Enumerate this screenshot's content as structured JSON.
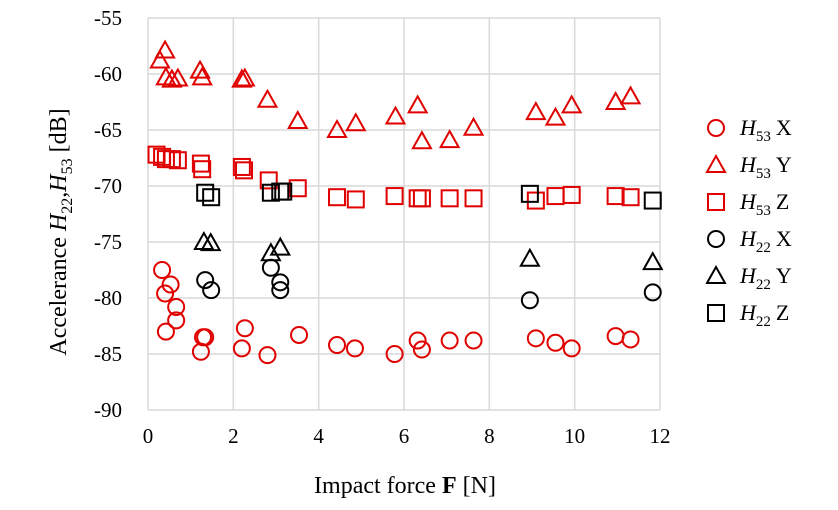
{
  "chart_data": {
    "type": "scatter",
    "xlabel": {
      "pre": "Impact force ",
      "bold": "F",
      "post": " [N]"
    },
    "ylabel": {
      "pre": "Accelerance  ",
      "h1": "H",
      "s1": "22",
      "sep": ",",
      "h2": "H",
      "s2": "53",
      "post": "  [dB]"
    },
    "xlim": [
      0,
      12
    ],
    "ylim": [
      -90,
      -55
    ],
    "xticks": [
      "0",
      "2",
      "4",
      "6",
      "8",
      "10",
      "12"
    ],
    "yticks": [
      "-55",
      "-60",
      "-65",
      "-70",
      "-75",
      "-80",
      "-85",
      "-90"
    ],
    "grid": true,
    "legend_position": "right",
    "series": [
      {
        "name": "H53 X",
        "h": "H",
        "sub": "53",
        "axis": "X",
        "marker": "circle",
        "color": "#e00000",
        "points": [
          [
            0.33,
            -77.5
          ],
          [
            0.4,
            -79.6
          ],
          [
            0.53,
            -78.8
          ],
          [
            0.42,
            -83
          ],
          [
            0.66,
            -80.8
          ],
          [
            0.66,
            -82
          ],
          [
            1.24,
            -84.8
          ],
          [
            1.29,
            -83.5
          ],
          [
            1.34,
            -83.5
          ],
          [
            2.2,
            -84.5
          ],
          [
            2.27,
            -82.7
          ],
          [
            2.8,
            -85.1
          ],
          [
            3.54,
            -83.3
          ],
          [
            4.43,
            -84.2
          ],
          [
            4.85,
            -84.5
          ],
          [
            5.78,
            -85
          ],
          [
            6.32,
            -83.8
          ],
          [
            6.42,
            -84.6
          ],
          [
            7.07,
            -83.8
          ],
          [
            7.63,
            -83.8
          ],
          [
            9.09,
            -83.6
          ],
          [
            9.55,
            -84
          ],
          [
            9.93,
            -84.5
          ],
          [
            10.96,
            -83.4
          ],
          [
            11.31,
            -83.7
          ]
        ]
      },
      {
        "name": "H53 Y",
        "h": "H",
        "sub": "53",
        "axis": "Y",
        "marker": "triangle",
        "color": "#e00000",
        "points": [
          [
            0.28,
            -58.8
          ],
          [
            0.4,
            -57.9
          ],
          [
            0.42,
            -60.3
          ],
          [
            0.56,
            -60.5
          ],
          [
            0.7,
            -60.4
          ],
          [
            1.22,
            -59.7
          ],
          [
            1.27,
            -60.3
          ],
          [
            2.2,
            -60.5
          ],
          [
            2.27,
            -60.4
          ],
          [
            2.8,
            -62.3
          ],
          [
            3.51,
            -64.2
          ],
          [
            4.43,
            -65
          ],
          [
            4.87,
            -64.4
          ],
          [
            5.8,
            -63.8
          ],
          [
            6.32,
            -62.8
          ],
          [
            6.42,
            -66
          ],
          [
            7.07,
            -65.9
          ],
          [
            7.63,
            -64.8
          ],
          [
            9.09,
            -63.4
          ],
          [
            9.55,
            -63.9
          ],
          [
            9.93,
            -62.8
          ],
          [
            10.96,
            -62.5
          ],
          [
            11.31,
            -62
          ]
        ]
      },
      {
        "name": "H53 Z",
        "h": "H",
        "sub": "53",
        "axis": "Z",
        "marker": "square",
        "color": "#e00000",
        "points": [
          [
            0.2,
            -67.2
          ],
          [
            0.33,
            -67.4
          ],
          [
            0.42,
            -67.6
          ],
          [
            0.56,
            -67.6
          ],
          [
            0.7,
            -67.7
          ],
          [
            1.24,
            -68
          ],
          [
            1.27,
            -68.5
          ],
          [
            2.2,
            -68.3
          ],
          [
            2.25,
            -68.6
          ],
          [
            2.83,
            -69.5
          ],
          [
            3.51,
            -70.2
          ],
          [
            4.43,
            -71
          ],
          [
            4.87,
            -71.2
          ],
          [
            5.78,
            -70.9
          ],
          [
            6.32,
            -71.1
          ],
          [
            6.42,
            -71.1
          ],
          [
            7.07,
            -71.1
          ],
          [
            7.63,
            -71.1
          ],
          [
            9.09,
            -71.3
          ],
          [
            9.55,
            -70.9
          ],
          [
            9.93,
            -70.8
          ],
          [
            10.96,
            -70.9
          ],
          [
            11.31,
            -71
          ]
        ]
      },
      {
        "name": "H22 X",
        "h": "H",
        "sub": "22",
        "axis": "X",
        "marker": "circle",
        "color": "#000000",
        "points": [
          [
            1.34,
            -78.4
          ],
          [
            1.48,
            -79.3
          ],
          [
            2.88,
            -77.3
          ],
          [
            3.1,
            -78.6
          ],
          [
            3.1,
            -79.3
          ],
          [
            8.95,
            -80.2
          ],
          [
            11.83,
            -79.5
          ]
        ]
      },
      {
        "name": "H22 Y",
        "h": "H",
        "sub": "22",
        "axis": "Y",
        "marker": "triangle",
        "color": "#000000",
        "points": [
          [
            1.31,
            -75
          ],
          [
            1.47,
            -75.1
          ],
          [
            2.88,
            -76
          ],
          [
            3.1,
            -75.5
          ],
          [
            8.95,
            -76.5
          ],
          [
            11.83,
            -76.8
          ]
        ]
      },
      {
        "name": "H22 Z",
        "h": "H",
        "sub": "22",
        "axis": "Z",
        "marker": "square",
        "color": "#000000",
        "points": [
          [
            1.34,
            -70.6
          ],
          [
            1.48,
            -71
          ],
          [
            2.88,
            -70.6
          ],
          [
            3.1,
            -70.5
          ],
          [
            3.17,
            -70.5
          ],
          [
            8.95,
            -70.7
          ],
          [
            11.83,
            -71.3
          ]
        ]
      }
    ]
  }
}
